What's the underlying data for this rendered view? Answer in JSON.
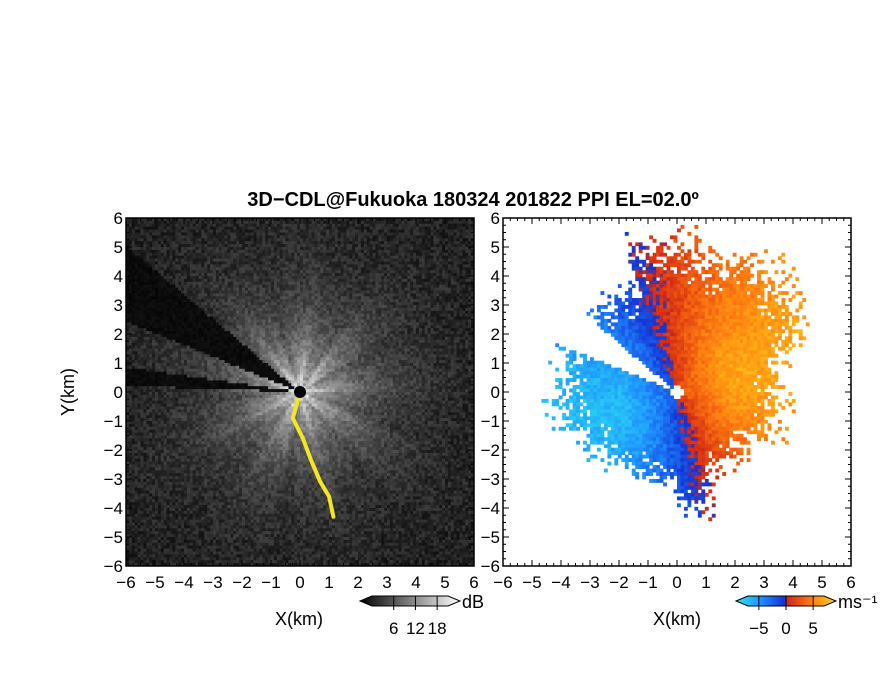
{
  "chart_data": {
    "type": "heatmap",
    "title": "3D−CDL@Fukuoka 180324 201822 PPI EL=02.0º",
    "panels": [
      {
        "name": "backscatter",
        "xlabel": "X(km)",
        "ylabel": "Y(km)",
        "xlim": [
          -6,
          6
        ],
        "ylim": [
          -6,
          6
        ],
        "xticks": [
          "−6",
          "−5",
          "−4",
          "−3",
          "−2",
          "−1",
          "0",
          "1",
          "2",
          "3",
          "4",
          "5",
          "6"
        ],
        "yticks": [
          "6",
          "5",
          "4",
          "3",
          "2",
          "1",
          "0",
          "−1",
          "−2",
          "−3",
          "−4",
          "−5",
          "−6"
        ],
        "colorbar": {
          "unit": "dB",
          "ticks": [
            "6",
            "12",
            "18"
          ],
          "range": [
            0,
            21
          ],
          "colormap": "black-to-white"
        },
        "background": "#0a0a0a",
        "highlight_color": "#f5e623",
        "blanked_sectors_deg": [
          [
            140,
            158
          ],
          [
            172,
            178
          ]
        ],
        "highlight_track_km": [
          [
            -0.05,
            -0.2
          ],
          [
            -0.25,
            -0.9
          ],
          [
            0.1,
            -1.6
          ],
          [
            0.4,
            -2.4
          ],
          [
            0.7,
            -3.1
          ],
          [
            1.0,
            -3.6
          ],
          [
            1.15,
            -4.3
          ]
        ]
      },
      {
        "name": "doppler-velocity",
        "xlabel": "X(km)",
        "xlim": [
          -6,
          6
        ],
        "ylim": [
          -6,
          6
        ],
        "xticks": [
          "−6",
          "−5",
          "−4",
          "−3",
          "−2",
          "−1",
          "0",
          "1",
          "2",
          "3",
          "4",
          "5",
          "6"
        ],
        "yticks": [
          "6",
          "5",
          "4",
          "3",
          "2",
          "1",
          "0",
          "−1",
          "−2",
          "−3",
          "−4",
          "−5",
          "−6"
        ],
        "colorbar": {
          "unit": "ms⁻¹",
          "ticks": [
            "−5",
            "0",
            "5"
          ],
          "range": [
            -7,
            7
          ],
          "colormap": "cyan-blue-red-yellow"
        },
        "background": "#ffffff"
      }
    ]
  }
}
